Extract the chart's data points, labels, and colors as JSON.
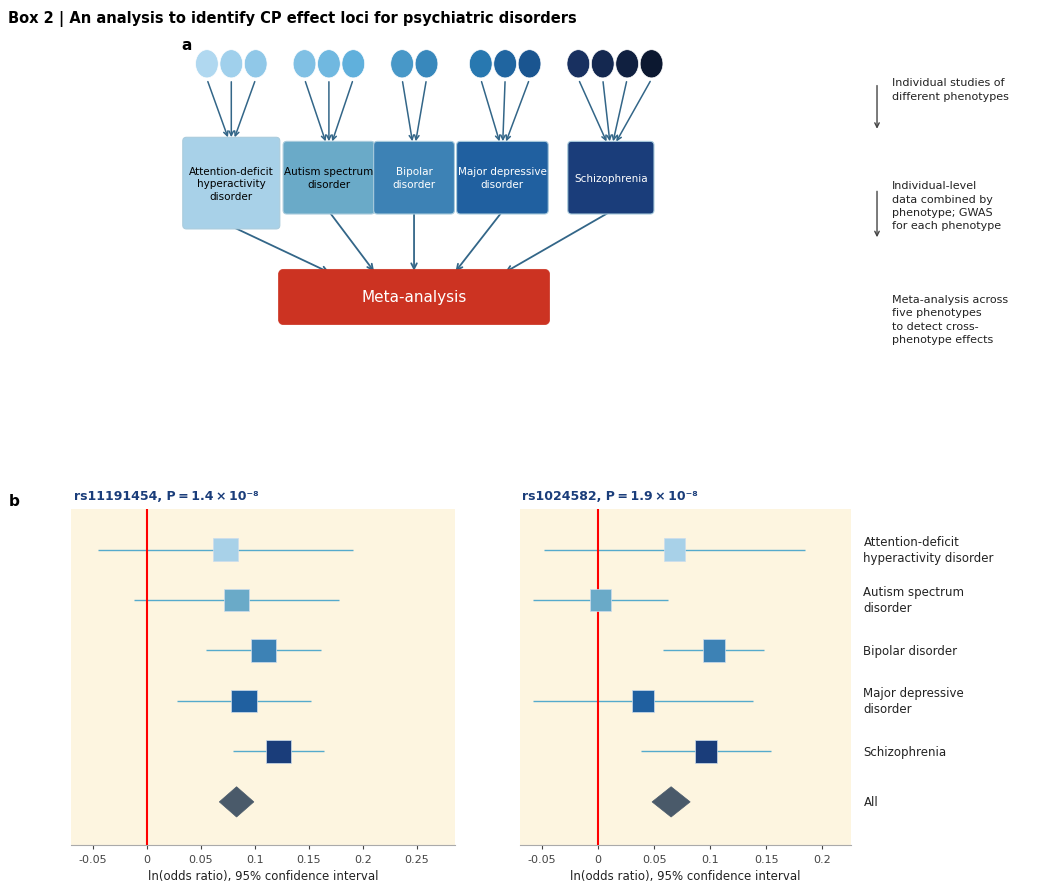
{
  "title": "Box 2 | An analysis to identify CP effect loci for psychiatric disorders",
  "panel_a_label": "a",
  "panel_b_label": "b",
  "disorders": [
    "Attention-deficit\nhyperactivity\ndisorder",
    "Autism spectrum\ndisorder",
    "Bipolar\ndisorder",
    "Major depressive\ndisorder",
    "Schizophrenia"
  ],
  "disorder_colors": [
    "#a8d1e8",
    "#6aaac8",
    "#3d82b5",
    "#2060a0",
    "#1a3d7a"
  ],
  "meta_analysis_color": "#cc3322",
  "meta_analysis_label": "Meta-analysis",
  "right_labels": [
    "Individual studies of\ndifferent phenotypes",
    "Individual-level\ndata combined by\nphenotype; GWAS\nfor each phenotype",
    "Meta-analysis across\nfive phenotypes\nto detect cross-\nphenotype effects"
  ],
  "snp1_label": "rs11191454, P = 1.4 × 10⁻⁸",
  "snp2_label": "rs1024582, P = 1.9 × 10⁻⁸",
  "forest_labels": [
    "Attention-deficit\nhyperactivity disorder",
    "Autism spectrum\ndisorder",
    "Bipolar disorder",
    "Major depressive\ndisorder",
    "Schizophrenia",
    "All"
  ],
  "snp1_estimates": [
    0.073,
    0.083,
    0.108,
    0.09,
    0.122,
    0.083
  ],
  "snp1_ci_low": [
    -0.045,
    -0.012,
    0.055,
    0.028,
    0.08,
    0.067
  ],
  "snp1_ci_high": [
    0.191,
    0.178,
    0.161,
    0.152,
    0.164,
    0.099
  ],
  "snp2_estimates": [
    0.068,
    0.002,
    0.103,
    0.04,
    0.096,
    0.065
  ],
  "snp2_ci_low": [
    -0.048,
    -0.058,
    0.058,
    -0.058,
    0.038,
    0.048
  ],
  "snp2_ci_high": [
    0.184,
    0.062,
    0.148,
    0.138,
    0.154,
    0.082
  ],
  "point_colors": [
    "#a8d1e8",
    "#6aaac8",
    "#3d82b5",
    "#2060a0",
    "#1a3d7a"
  ],
  "diamond_color": "#4a5a6a",
  "forest_bg_color": "#fdf5e0",
  "snp1_xlim": [
    -0.07,
    0.285
  ],
  "snp2_xlim": [
    -0.07,
    0.225
  ],
  "snp1_xticks": [
    -0.05,
    0.0,
    0.05,
    0.1,
    0.15,
    0.2,
    0.25
  ],
  "snp2_xticks": [
    -0.05,
    0.0,
    0.05,
    0.1,
    0.15,
    0.2
  ],
  "xlabel": "ln(odds ratio), 95% confidence interval",
  "bubble_groups": [
    {
      "x_positions": [
        0.52,
        0.85,
        1.18
      ],
      "color": "#a8d8f0"
    },
    {
      "x_positions": [
        1.62,
        1.95,
        2.28
      ],
      "color": "#88c4e4"
    },
    {
      "x_positions": [
        3.1,
        3.43,
        3.76
      ],
      "color": "#5aaad8"
    },
    {
      "x_positions": [
        4.58,
        4.91
      ],
      "color": "#3a8ac0"
    },
    {
      "x_positions": [
        5.72,
        6.05,
        6.38,
        6.71
      ],
      "color": "#2060a0"
    },
    {
      "x_positions": [
        7.42,
        7.75,
        8.08
      ],
      "color": "#1a3d7a"
    },
    {
      "x_positions": [
        8.52,
        8.85
      ],
      "color": "#101828"
    }
  ],
  "arrow_color": "#336688"
}
